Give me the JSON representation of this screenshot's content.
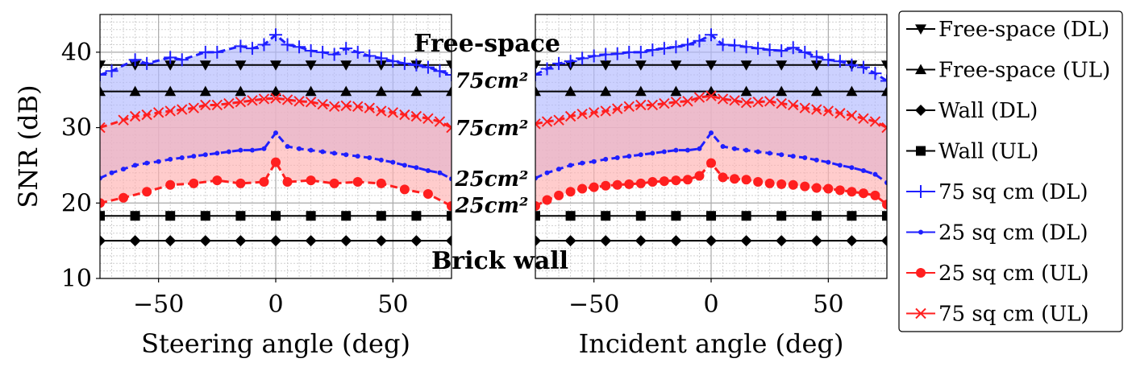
{
  "chart_data": [
    {
      "type": "line",
      "xlabel": "Steering angle (deg)",
      "ylabel": "SNR (dB)",
      "xlim": [
        -75,
        75
      ],
      "ylim": [
        10,
        45
      ],
      "xticks": [
        -50,
        0,
        50
      ],
      "xtick_labels": [
        "−50",
        "0",
        "50"
      ],
      "yticks": [
        10,
        20,
        30,
        40
      ],
      "ytick_labels": [
        "10",
        "20",
        "30",
        "40"
      ],
      "grid": true,
      "series": [
        {
          "name": "Free-space (DL)",
          "color": "#000000",
          "marker": "triangle-down",
          "x": [
            -75,
            -60,
            -45,
            -30,
            -15,
            0,
            15,
            30,
            45,
            60,
            75
          ],
          "y": [
            38.3,
            38.3,
            38.3,
            38.3,
            38.3,
            38.3,
            38.3,
            38.3,
            38.3,
            38.3,
            38.3
          ]
        },
        {
          "name": "Free-space (UL)",
          "color": "#000000",
          "marker": "triangle-up",
          "x": [
            -75,
            -60,
            -45,
            -30,
            -15,
            0,
            15,
            30,
            45,
            60,
            75
          ],
          "y": [
            34.8,
            34.8,
            34.8,
            34.8,
            34.8,
            34.8,
            34.8,
            34.8,
            34.8,
            34.8,
            34.8
          ]
        },
        {
          "name": "Wall (DL)",
          "color": "#000000",
          "marker": "diamond",
          "x": [
            -75,
            -60,
            -45,
            -30,
            -15,
            0,
            15,
            30,
            45,
            60,
            75
          ],
          "y": [
            15,
            15,
            15,
            15,
            15,
            15,
            15,
            15,
            15,
            15,
            15
          ]
        },
        {
          "name": "Wall (UL)",
          "color": "#000000",
          "marker": "square",
          "x": [
            -75,
            -60,
            -45,
            -30,
            -15,
            0,
            15,
            30,
            45,
            60,
            75
          ],
          "y": [
            18.3,
            18.3,
            18.3,
            18.3,
            18.3,
            18.3,
            18.3,
            18.3,
            18.3,
            18.3,
            18.3
          ]
        },
        {
          "name": "75 sq cm (DL)",
          "color": "#1f1fff",
          "marker": "plus",
          "dashed": true,
          "x": [
            -75,
            -70,
            -60,
            -55,
            -45,
            -40,
            -30,
            -25,
            -15,
            -10,
            -5,
            0,
            5,
            10,
            15,
            20,
            25,
            30,
            35,
            40,
            45,
            50,
            55,
            60,
            65,
            70,
            75
          ],
          "y": [
            37,
            37.5,
            39,
            38.5,
            39.3,
            39,
            40,
            40,
            40.8,
            40.5,
            41,
            42.3,
            41,
            40.7,
            40.2,
            40,
            39.7,
            40.5,
            40,
            39.5,
            39.2,
            38.8,
            38.5,
            38.3,
            38,
            37.5,
            37
          ]
        },
        {
          "name": "25 sq cm (DL)",
          "color": "#1f1fff",
          "marker": "dot",
          "dashed": true,
          "x": [
            -75,
            -70,
            -65,
            -60,
            -55,
            -50,
            -45,
            -40,
            -35,
            -30,
            -25,
            -20,
            -15,
            -10,
            -5,
            0,
            5,
            10,
            15,
            20,
            25,
            30,
            35,
            40,
            45,
            50,
            55,
            60,
            65,
            70,
            75
          ],
          "y": [
            23.3,
            24,
            24.5,
            25,
            25.3,
            25.5,
            25.8,
            26,
            26.2,
            26.4,
            26.6,
            26.8,
            27,
            27,
            27.2,
            29.3,
            27.5,
            27.2,
            27,
            26.8,
            26.6,
            26.4,
            26.2,
            26,
            25.7,
            25.4,
            25,
            24.7,
            24.3,
            24,
            23.2
          ]
        },
        {
          "name": "25 sq cm (UL)",
          "color": "#ff1f1f",
          "marker": "circle",
          "dashed": true,
          "x": [
            -75,
            -65,
            -55,
            -45,
            -35,
            -25,
            -15,
            -5,
            0,
            5,
            15,
            25,
            35,
            45,
            55,
            65,
            75
          ],
          "y": [
            20,
            20.7,
            21.5,
            22.4,
            22.6,
            23,
            22.6,
            22.8,
            25.4,
            22.8,
            23,
            22.6,
            22.8,
            22.6,
            21.8,
            21.2,
            19.6
          ]
        },
        {
          "name": "75 sq cm (UL)",
          "color": "#ff1f1f",
          "marker": "x",
          "dashed": true,
          "x": [
            -75,
            -65,
            -60,
            -55,
            -50,
            -45,
            -40,
            -35,
            -30,
            -25,
            -20,
            -15,
            -10,
            -5,
            0,
            5,
            10,
            15,
            20,
            25,
            30,
            35,
            40,
            45,
            50,
            55,
            60,
            65,
            70,
            75
          ],
          "y": [
            30,
            31,
            31.5,
            31.7,
            32,
            32.2,
            32.4,
            32.6,
            33,
            33,
            33.2,
            33.4,
            33.6,
            33.8,
            33.9,
            33.7,
            33.5,
            33.4,
            33.1,
            32.8,
            32.9,
            32.8,
            32.6,
            32.2,
            32,
            31.7,
            31.5,
            31.2,
            30.8,
            30
          ]
        }
      ]
    },
    {
      "type": "line",
      "xlabel": "Incident angle (deg)",
      "ylabel": "",
      "xlim": [
        -75,
        75
      ],
      "ylim": [
        10,
        45
      ],
      "xticks": [
        -50,
        0,
        50
      ],
      "xtick_labels": [
        "−50",
        "0",
        "50"
      ],
      "grid": true,
      "series": [
        {
          "name": "Free-space (DL)",
          "color": "#000000",
          "marker": "triangle-down",
          "x": [
            -75,
            -60,
            -45,
            -30,
            -15,
            0,
            15,
            30,
            45,
            60,
            75
          ],
          "y": [
            38.3,
            38.3,
            38.3,
            38.3,
            38.3,
            38.3,
            38.3,
            38.3,
            38.3,
            38.3,
            38.3
          ]
        },
        {
          "name": "Free-space (UL)",
          "color": "#000000",
          "marker": "triangle-up",
          "x": [
            -75,
            -60,
            -45,
            -30,
            -15,
            0,
            15,
            30,
            45,
            60,
            75
          ],
          "y": [
            34.8,
            34.8,
            34.8,
            34.8,
            34.8,
            34.8,
            34.8,
            34.8,
            34.8,
            34.8,
            34.8
          ]
        },
        {
          "name": "Wall (DL)",
          "color": "#000000",
          "marker": "diamond",
          "x": [
            -75,
            -60,
            -45,
            -30,
            -15,
            0,
            15,
            30,
            45,
            60,
            75
          ],
          "y": [
            15,
            15,
            15,
            15,
            15,
            15,
            15,
            15,
            15,
            15,
            15
          ]
        },
        {
          "name": "Wall (UL)",
          "color": "#000000",
          "marker": "square",
          "x": [
            -75,
            -60,
            -45,
            -30,
            -15,
            0,
            15,
            30,
            45,
            60,
            75
          ],
          "y": [
            18.3,
            18.3,
            18.3,
            18.3,
            18.3,
            18.3,
            18.3,
            18.3,
            18.3,
            18.3,
            18.3
          ]
        },
        {
          "name": "75 sq cm (DL)",
          "color": "#1f1fff",
          "marker": "plus",
          "dashed": true,
          "x": [
            -75,
            -70,
            -65,
            -60,
            -55,
            -50,
            -45,
            -40,
            -35,
            -30,
            -25,
            -20,
            -15,
            -10,
            -5,
            0,
            5,
            10,
            15,
            20,
            25,
            30,
            35,
            40,
            45,
            50,
            55,
            60,
            65,
            70,
            75
          ],
          "y": [
            37,
            37.8,
            38.5,
            38.8,
            39.2,
            39.5,
            39.7,
            39.8,
            40,
            40,
            40.3,
            40.5,
            40.7,
            41,
            41.5,
            42.3,
            41,
            40.9,
            40.7,
            40.5,
            40.3,
            40.2,
            40.6,
            40,
            39.4,
            39,
            38.8,
            38.3,
            38,
            37.2,
            36.2
          ]
        },
        {
          "name": "25 sq cm (DL)",
          "color": "#1f1fff",
          "marker": "dot",
          "dashed": true,
          "x": [
            -75,
            -70,
            -65,
            -60,
            -55,
            -50,
            -45,
            -40,
            -35,
            -30,
            -25,
            -20,
            -15,
            -10,
            -5,
            0,
            5,
            10,
            15,
            20,
            25,
            30,
            35,
            40,
            45,
            50,
            55,
            60,
            65,
            70,
            75
          ],
          "y": [
            23.3,
            24,
            24.5,
            25,
            25.3,
            25.5,
            25.8,
            26,
            26.2,
            26.4,
            26.6,
            26.8,
            27,
            27,
            27.2,
            29.3,
            27.5,
            27.2,
            27,
            26.8,
            26.6,
            26.4,
            26.2,
            26,
            25.7,
            25.4,
            25,
            24.7,
            24.3,
            23.8,
            22.7
          ]
        },
        {
          "name": "25 sq cm (UL)",
          "color": "#ff1f1f",
          "marker": "circle",
          "dashed": true,
          "x": [
            -75,
            -70,
            -65,
            -60,
            -55,
            -50,
            -45,
            -40,
            -35,
            -30,
            -25,
            -20,
            -15,
            -10,
            -5,
            0,
            5,
            10,
            15,
            20,
            25,
            30,
            35,
            40,
            45,
            50,
            55,
            60,
            65,
            70,
            75
          ],
          "y": [
            19.6,
            20.4,
            21,
            21.5,
            21.9,
            22.1,
            22.3,
            22.4,
            22.5,
            22.6,
            22.8,
            22.9,
            23,
            23.1,
            23.6,
            25.3,
            23.4,
            23.2,
            23.1,
            22.8,
            22.6,
            22.5,
            22.4,
            22.2,
            22,
            21.9,
            21.7,
            21.5,
            21.3,
            21,
            19.8
          ]
        },
        {
          "name": "75 sq cm (UL)",
          "color": "#ff1f1f",
          "marker": "x",
          "dashed": true,
          "x": [
            -75,
            -70,
            -65,
            -60,
            -55,
            -50,
            -45,
            -40,
            -35,
            -30,
            -25,
            -20,
            -15,
            -10,
            -5,
            0,
            5,
            10,
            15,
            20,
            25,
            30,
            35,
            40,
            45,
            50,
            55,
            60,
            65,
            70,
            75
          ],
          "y": [
            30.5,
            30.8,
            31,
            31.5,
            31.8,
            32,
            32.2,
            32.5,
            32.8,
            33,
            33,
            33.2,
            33.4,
            33.5,
            34,
            34.2,
            33.8,
            33.6,
            33.3,
            33.4,
            33.5,
            33.2,
            33,
            32.6,
            32.4,
            32.2,
            31.9,
            31.6,
            31.2,
            30.8,
            30
          ]
        }
      ]
    }
  ],
  "shading": {
    "dl_band_color": "#b0b8ff",
    "ul_band_color": "#ffb0b0"
  },
  "annotations": {
    "free_space": "Free-space",
    "brick_wall": "Brick wall",
    "area_75_dl": "75cm²",
    "area_75_ul": "75cm²",
    "area_25_dl": "25cm²",
    "area_25_ul": "25cm²"
  },
  "legend": {
    "position": "right",
    "entries": [
      {
        "label": "Free-space (DL)",
        "color": "#000000",
        "marker": "triangle-down"
      },
      {
        "label": "Free-space (UL)",
        "color": "#000000",
        "marker": "triangle-up"
      },
      {
        "label": "Wall (DL)",
        "color": "#000000",
        "marker": "diamond"
      },
      {
        "label": "Wall (UL)",
        "color": "#000000",
        "marker": "square"
      },
      {
        "label": "75 sq cm (DL)",
        "color": "#1f1fff",
        "marker": "plus"
      },
      {
        "label": "25 sq cm (DL)",
        "color": "#1f1fff",
        "marker": "dot"
      },
      {
        "label": "25 sq cm (UL)",
        "color": "#ff1f1f",
        "marker": "circle"
      },
      {
        "label": "75 sq cm (UL)",
        "color": "#ff1f1f",
        "marker": "x"
      }
    ]
  }
}
